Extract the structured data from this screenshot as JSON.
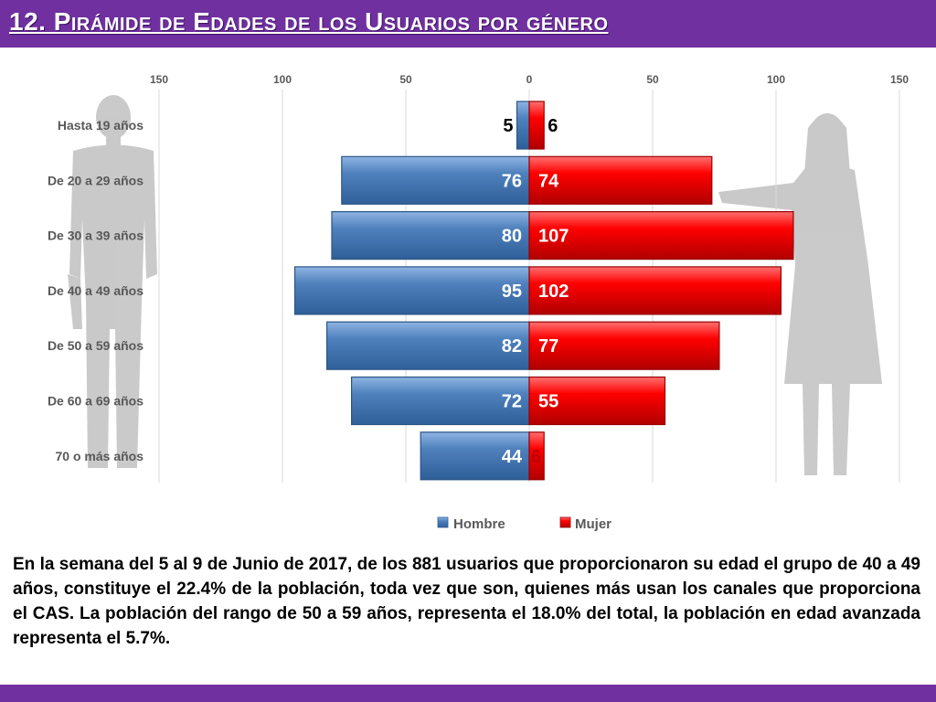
{
  "title": "12. Pirámide de Edades de los Usuarios por género",
  "colors": {
    "brand": "#7030a0",
    "hombre": "#4f81bd",
    "mujer": "#ff0000",
    "silhouette": "#bfbfbf",
    "text": "#595959"
  },
  "chart_data": {
    "type": "bar",
    "orientation": "horizontal-butterfly",
    "categories": [
      "Hasta 19 años",
      "De 20 a 29 años",
      "De 30 a 39 años",
      "De 40 a 49 años",
      "De 50 a 59 años",
      "De 60 a 69 años",
      "70 o más años"
    ],
    "series": [
      {
        "name": "Hombre",
        "values": [
          5,
          76,
          80,
          95,
          82,
          72,
          44
        ],
        "color": "#4f81bd",
        "side": "left"
      },
      {
        "name": "Mujer",
        "values": [
          6,
          74,
          107,
          102,
          77,
          55,
          6
        ],
        "color": "#ff0000",
        "side": "right"
      }
    ],
    "xlim": [
      -150,
      150
    ],
    "x_ticks": [
      -150,
      -100,
      -50,
      0,
      50,
      100,
      150
    ],
    "x_tick_labels": [
      "150",
      "100",
      "50",
      "0",
      "50",
      "100",
      "150"
    ],
    "gridlines": true,
    "legend_position": "bottom",
    "decoration": "male-and-female-silhouettes"
  },
  "description": "En la semana del 5 al 9 de Junio de 2017, de los 881 usuarios  que proporcionaron su edad el grupo de 40 a 49 años, constituye el 22.4% de la población, toda vez que son, quienes más usan los canales que proporciona el CAS. La población del rango de 50 a 59 años, representa el 18.0% del total, la población en edad avanzada representa el 5.7%."
}
